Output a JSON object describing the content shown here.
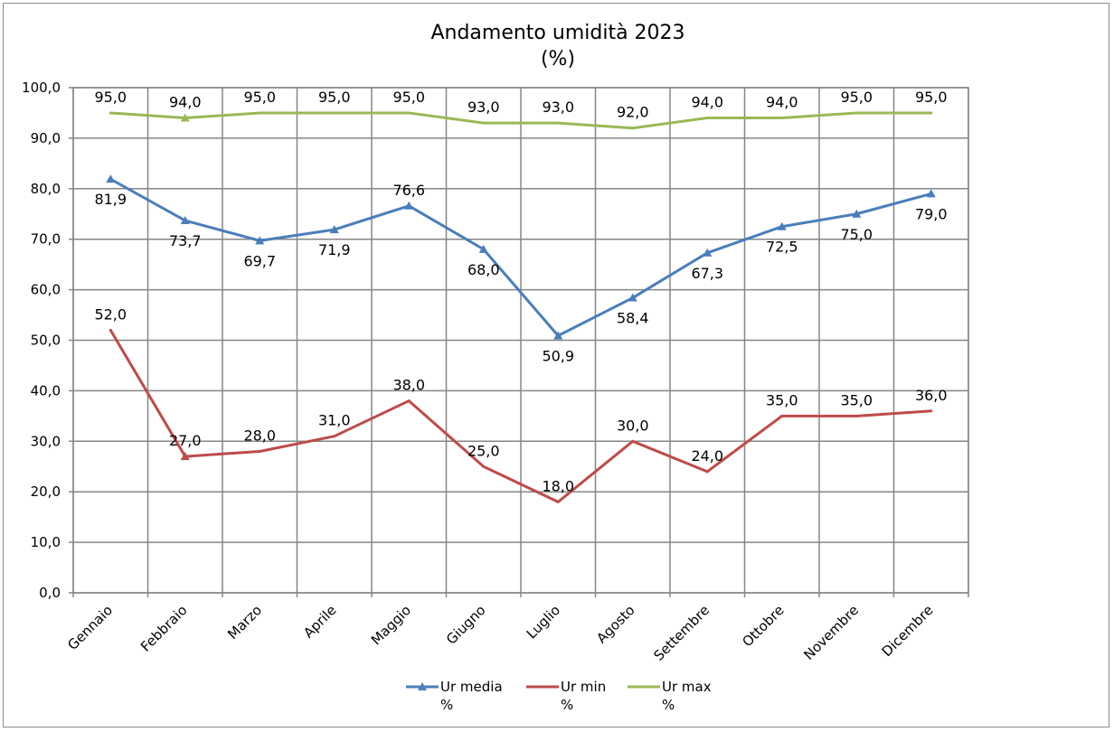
{
  "chart_data": {
    "type": "line",
    "title": "Andamento umidità 2023",
    "subtitle": "(%)",
    "categories": [
      "Gennaio",
      "Febbraio",
      "Marzo",
      "Aprile",
      "Maggio",
      "Giugno",
      "Luglio",
      "Agosto",
      "Settembre",
      "Ottobre",
      "Novembre",
      "Dicembre"
    ],
    "ylim": [
      0,
      100
    ],
    "yticks": [
      "0,0",
      "10,0",
      "20,0",
      "30,0",
      "40,0",
      "50,0",
      "60,0",
      "70,0",
      "80,0",
      "90,0",
      "100,0"
    ],
    "grid": true,
    "legend_position": "bottom",
    "series": [
      {
        "name": "Ur media %",
        "legend_line1": "Ur media",
        "legend_line2": "%",
        "color": "#4a7ebb",
        "marker": "triangle",
        "values": [
          81.9,
          73.7,
          69.7,
          71.9,
          76.6,
          68.0,
          50.9,
          58.4,
          67.3,
          72.5,
          75.0,
          79.0
        ],
        "labels": [
          "81,9",
          "73,7",
          "69,7",
          "71,9",
          "76,6",
          "68,0",
          "50,9",
          "58,4",
          "67,3",
          "72,5",
          "75,0",
          "79,0"
        ]
      },
      {
        "name": "Ur min %",
        "legend_line1": "Ur min",
        "legend_line2": "%",
        "color": "#be4b48",
        "marker": "none",
        "values": [
          52.0,
          27.0,
          28.0,
          31.0,
          38.0,
          25.0,
          18.0,
          30.0,
          24.0,
          35.0,
          35.0,
          36.0
        ],
        "labels": [
          "52,0",
          "27,0",
          "28,0",
          "31,0",
          "38,0",
          "25,0",
          "18,0",
          "30,0",
          "24,0",
          "35,0",
          "35,0",
          "36,0"
        ]
      },
      {
        "name": "Ur max %",
        "legend_line1": "Ur max",
        "legend_line2": "%",
        "color": "#98b954",
        "marker": "none",
        "values": [
          95.0,
          94.0,
          95.0,
          95.0,
          95.0,
          93.0,
          93.0,
          92.0,
          94.0,
          94.0,
          95.0,
          95.0
        ],
        "labels": [
          "95,0",
          "94,0",
          "95,0",
          "95,0",
          "95,0",
          "93,0",
          "93,0",
          "92,0",
          "94,0",
          "94,0",
          "95,0",
          "95,0"
        ]
      }
    ]
  }
}
